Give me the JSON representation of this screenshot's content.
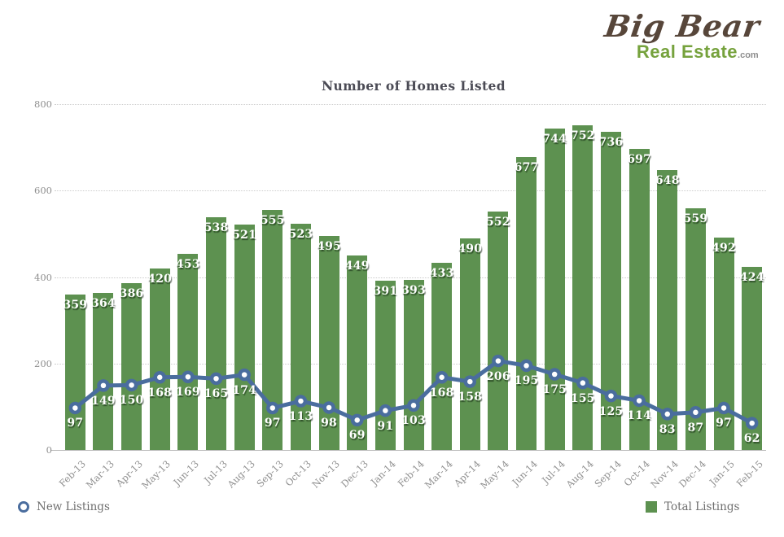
{
  "logo": {
    "name": "Big Bear",
    "sub": "Real Estate",
    "tld": ".com"
  },
  "chart_data": {
    "type": "bar",
    "title": "Number of Homes Listed",
    "categories": [
      "Feb-13",
      "Mar-13",
      "Apr-13",
      "May-13",
      "Jun-13",
      "Jul-13",
      "Aug-13",
      "Sep-13",
      "Oct-13",
      "Nov-13",
      "Dec-13",
      "Jan-14",
      "Feb-14",
      "Mar-14",
      "Apr-14",
      "May-14",
      "Jun-14",
      "Jul-14",
      "Aug-14",
      "Sep-14",
      "Oct-14",
      "Nov-14",
      "Dec-14",
      "Jan-15",
      "Feb-15"
    ],
    "series": [
      {
        "name": "Total Listings",
        "type": "bar",
        "color": "#5d9150",
        "values": [
          359,
          364,
          386,
          420,
          453,
          538,
          521,
          555,
          523,
          495,
          449,
          391,
          393,
          433,
          490,
          552,
          677,
          744,
          752,
          736,
          697,
          648,
          559,
          492,
          424
        ]
      },
      {
        "name": "New Listings",
        "type": "line",
        "color": "#4a6d9e",
        "marker": "circle-white-fill",
        "values": [
          97,
          149,
          150,
          168,
          169,
          165,
          174,
          97,
          113,
          98,
          69,
          91,
          103,
          168,
          158,
          206,
          195,
          175,
          155,
          125,
          114,
          83,
          87,
          97,
          62
        ]
      }
    ],
    "ylim": [
      0,
      800
    ],
    "yticks": [
      0,
      200,
      400,
      600,
      800
    ],
    "grid": "horizontal-dotted",
    "legend_position": "bottom",
    "value_labels": "white-bold-with-shadow"
  }
}
